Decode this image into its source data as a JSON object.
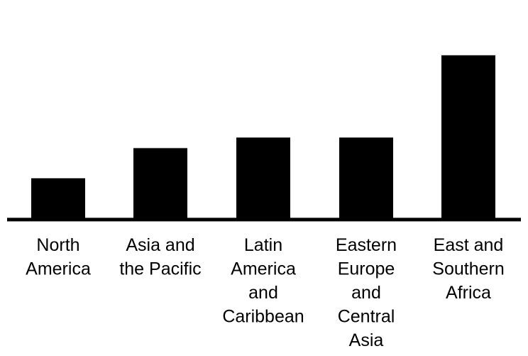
{
  "chart_data": {
    "type": "bar",
    "categories": [
      "North America",
      "Asia and the Pacific",
      "Latin America and Caribbean",
      "Eastern Europe and Central Asia",
      "East and Southern Africa"
    ],
    "category_label_lines": [
      [
        "North",
        "America"
      ],
      [
        "Asia and",
        "the Pacific"
      ],
      [
        "Latin",
        "America",
        "and",
        "Caribbean"
      ],
      [
        "Eastern",
        "Europe",
        "and",
        "Central",
        "Asia"
      ],
      [
        "East and",
        "Southern",
        "Africa"
      ]
    ],
    "values": [
      24.5,
      43,
      49.5,
      49.5,
      100
    ],
    "ylim": [
      0,
      130
    ],
    "grid": false,
    "legend": "none",
    "title": "",
    "xlabel": "",
    "ylabel": "",
    "colors": {
      "bar": "#000000",
      "axis": "#000000",
      "background": "#ffffff"
    }
  }
}
